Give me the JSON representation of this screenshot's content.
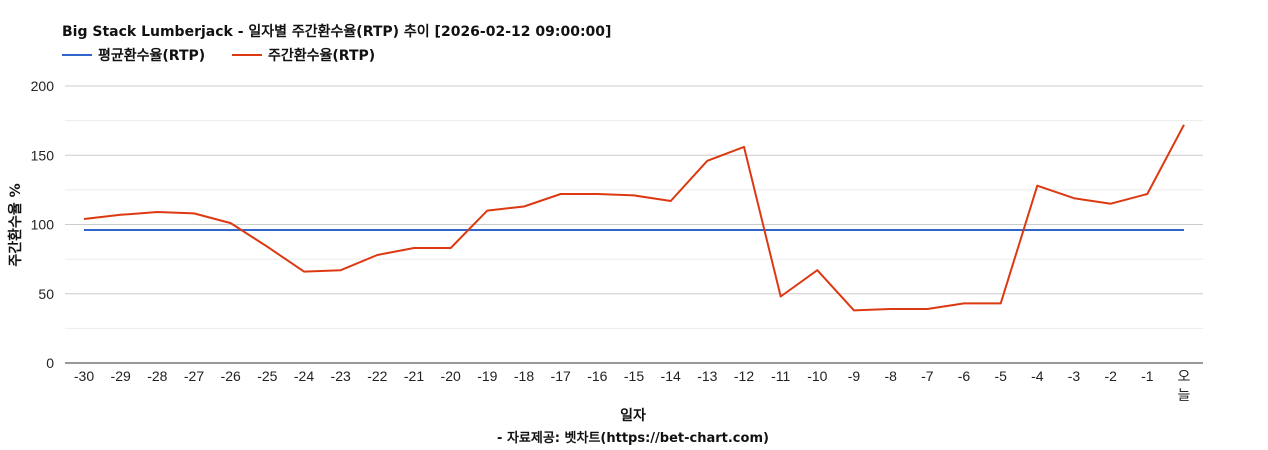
{
  "chart_data": {
    "type": "line",
    "title": "Big Stack Lumberjack - 일자별 주간환수율(RTP) 추이 [2026-02-12 09:00:00]",
    "xlabel": "일자",
    "ylabel": "주간환수율 %",
    "ylim": [
      0,
      200
    ],
    "yticks": [
      "0",
      "50",
      "100",
      "150",
      "200"
    ],
    "grid": true,
    "legend_position": "top-left",
    "categories": [
      "-30",
      "-29",
      "-28",
      "-27",
      "-26",
      "-25",
      "-24",
      "-23",
      "-22",
      "-21",
      "-20",
      "-19",
      "-18",
      "-17",
      "-16",
      "-15",
      "-14",
      "-13",
      "-12",
      "-11",
      "-10",
      "-9",
      "-8",
      "-7",
      "-6",
      "-5",
      "-4",
      "-3",
      "-2",
      "-1",
      "오늘"
    ],
    "series": [
      {
        "name": "평균환수율(RTP)",
        "color": "#3366cc",
        "values": [
          96,
          96,
          96,
          96,
          96,
          96,
          96,
          96,
          96,
          96,
          96,
          96,
          96,
          96,
          96,
          96,
          96,
          96,
          96,
          96,
          96,
          96,
          96,
          96,
          96,
          96,
          96,
          96,
          96,
          96,
          96
        ]
      },
      {
        "name": "주간환수율(RTP)",
        "color": "#dc3912",
        "values": [
          104,
          107,
          109,
          108,
          101,
          84,
          66,
          67,
          78,
          83,
          83,
          110,
          113,
          122,
          122,
          121,
          117,
          146,
          156,
          48,
          67,
          38,
          39,
          39,
          43,
          43,
          128,
          119,
          115,
          122,
          172
        ]
      }
    ]
  },
  "source": "- 자료제공: 벳차트(https://bet-chart.com)"
}
